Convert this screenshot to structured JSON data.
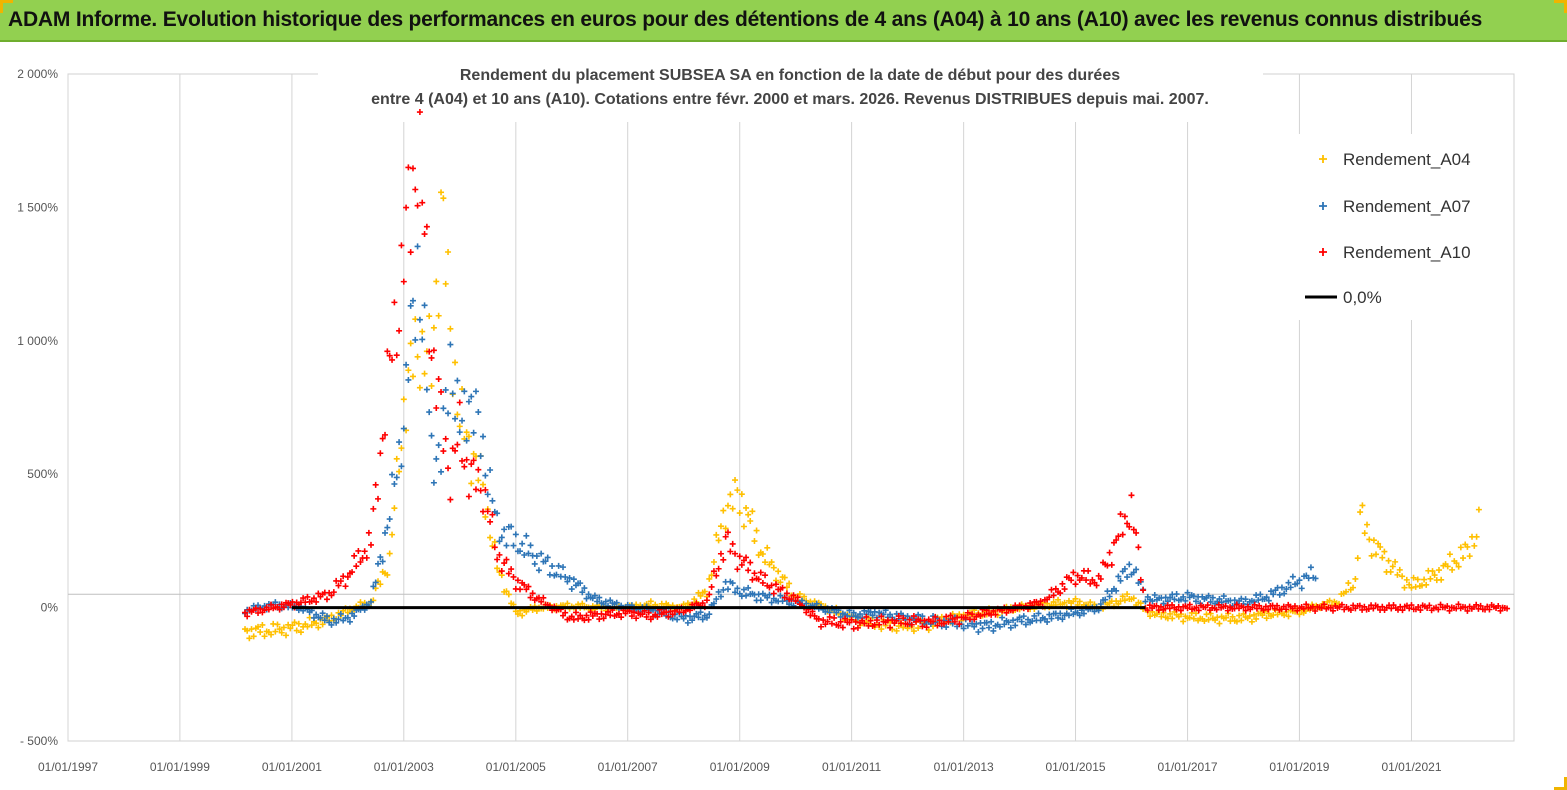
{
  "header": {
    "title": "ADAM Informe. Evolution historique des performances en euros pour des détentions de 4 ans (A04) à 10 ans (A10) avec les revenus connus distribués",
    "background": "#92d050"
  },
  "chart_data": {
    "type": "scatter",
    "title_lines": [
      "Rendement du placement SUBSEA SA en fonction de la date de début pour des durées",
      "entre 4 (A04) et 10 ans (A10).  Cotations entre févr. 2000 et mars. 2026. Revenus DISTRIBUES depuis mai. 2007."
    ],
    "x_axis": {
      "type": "date",
      "range": [
        "1997-01-01",
        "2022-11-01"
      ],
      "tick_labels": [
        "01/01/1997",
        "01/01/1999",
        "01/01/2001",
        "01/01/2003",
        "01/01/2005",
        "01/01/2007",
        "01/01/2009",
        "01/01/2011",
        "01/01/2013",
        "01/01/2015",
        "01/01/2017",
        "01/01/2019",
        "01/01/2021"
      ],
      "gridlines": true
    },
    "y_axis": {
      "range": [
        -500,
        2000
      ],
      "ticks": [
        -500,
        0,
        500,
        1000,
        1500,
        2000
      ],
      "tick_labels": [
        "- 500%",
        "0%",
        "500%",
        "1 000%",
        "1 500%",
        "2 000%"
      ],
      "unit": "%"
    },
    "legend": {
      "position": "top-right",
      "entries": [
        "Rendement_A04",
        "Rendement_A07",
        "Rendement_A10",
        "0,0%"
      ]
    },
    "series": [
      {
        "name": "Rendement_A04",
        "color": "#ffc000",
        "marker": "plus",
        "points": [
          [
            "2000-03-01",
            -90
          ],
          [
            "2000-09-01",
            -85
          ],
          [
            "2001-03-01",
            -70
          ],
          [
            "2001-09-01",
            -45
          ],
          [
            "2002-01-01",
            -10
          ],
          [
            "2002-06-01",
            20
          ],
          [
            "2002-10-01",
            180
          ],
          [
            "2003-01-01",
            750
          ],
          [
            "2003-04-01",
            1000
          ],
          [
            "2003-07-01",
            900
          ],
          [
            "2003-09-01",
            1500
          ],
          [
            "2003-11-01",
            1050
          ],
          [
            "2004-01-01",
            700
          ],
          [
            "2004-03-01",
            620
          ],
          [
            "2004-06-01",
            450
          ],
          [
            "2004-09-01",
            150
          ],
          [
            "2005-01-01",
            -20
          ],
          [
            "2005-06-01",
            0
          ],
          [
            "2006-01-01",
            5
          ],
          [
            "2006-06-01",
            0
          ],
          [
            "2007-01-01",
            0
          ],
          [
            "2007-06-01",
            10
          ],
          [
            "2008-01-01",
            0
          ],
          [
            "2008-06-01",
            60
          ],
          [
            "2008-10-01",
            380
          ],
          [
            "2009-01-01",
            420
          ],
          [
            "2009-06-01",
            200
          ],
          [
            "2010-01-01",
            40
          ],
          [
            "2010-06-01",
            10
          ],
          [
            "2011-01-01",
            -40
          ],
          [
            "2011-06-01",
            -60
          ],
          [
            "2012-01-01",
            -70
          ],
          [
            "2012-06-01",
            -60
          ],
          [
            "2013-01-01",
            -30
          ],
          [
            "2013-06-01",
            -20
          ],
          [
            "2014-01-01",
            0
          ],
          [
            "2014-06-01",
            10
          ],
          [
            "2015-01-01",
            20
          ],
          [
            "2015-06-01",
            0
          ],
          [
            "2016-01-01",
            40
          ],
          [
            "2016-04-01",
            -10
          ],
          [
            "2016-06-01",
            -25
          ],
          [
            "2017-01-01",
            -35
          ],
          [
            "2017-06-01",
            -40
          ],
          [
            "2018-01-01",
            -40
          ],
          [
            "2018-06-01",
            -25
          ],
          [
            "2019-01-01",
            -15
          ],
          [
            "2019-06-01",
            10
          ],
          [
            "2019-09-01",
            20
          ],
          [
            "2020-01-01",
            100
          ],
          [
            "2020-02-01",
            340
          ],
          [
            "2020-05-01",
            230
          ],
          [
            "2020-09-01",
            150
          ],
          [
            "2021-01-01",
            80
          ],
          [
            "2021-06-01",
            120
          ],
          [
            "2022-01-01",
            210
          ],
          [
            "2022-04-01",
            330
          ]
        ]
      },
      {
        "name": "Rendement_A07",
        "color": "#2e75b6",
        "marker": "plus",
        "points": [
          [
            "2000-03-01",
            -10
          ],
          [
            "2000-09-01",
            10
          ],
          [
            "2001-03-01",
            0
          ],
          [
            "2001-09-01",
            -50
          ],
          [
            "2002-01-01",
            -40
          ],
          [
            "2002-06-01",
            20
          ],
          [
            "2002-10-01",
            350
          ],
          [
            "2003-01-01",
            700
          ],
          [
            "2003-04-01",
            1300
          ],
          [
            "2003-07-01",
            600
          ],
          [
            "2003-09-01",
            550
          ],
          [
            "2003-11-01",
            950
          ],
          [
            "2004-01-01",
            650
          ],
          [
            "2004-03-01",
            800
          ],
          [
            "2004-06-01",
            600
          ],
          [
            "2004-09-01",
            300
          ],
          [
            "2005-01-01",
            250
          ],
          [
            "2005-06-01",
            180
          ],
          [
            "2006-01-01",
            100
          ],
          [
            "2006-06-01",
            30
          ],
          [
            "2007-01-01",
            0
          ],
          [
            "2007-06-01",
            -10
          ],
          [
            "2008-01-01",
            -40
          ],
          [
            "2008-06-01",
            -30
          ],
          [
            "2008-10-01",
            90
          ],
          [
            "2009-01-01",
            60
          ],
          [
            "2009-06-01",
            40
          ],
          [
            "2010-01-01",
            20
          ],
          [
            "2010-06-01",
            0
          ],
          [
            "2011-01-01",
            -30
          ],
          [
            "2011-06-01",
            -20
          ],
          [
            "2012-01-01",
            -40
          ],
          [
            "2012-06-01",
            -50
          ],
          [
            "2013-01-01",
            -60
          ],
          [
            "2013-06-01",
            -70
          ],
          [
            "2014-01-01",
            -50
          ],
          [
            "2014-06-01",
            -40
          ],
          [
            "2015-01-01",
            -20
          ],
          [
            "2015-06-01",
            0
          ],
          [
            "2016-01-01",
            160
          ],
          [
            "2016-04-01",
            40
          ],
          [
            "2016-06-01",
            30
          ],
          [
            "2017-01-01",
            40
          ],
          [
            "2017-06-01",
            30
          ],
          [
            "2018-01-01",
            20
          ],
          [
            "2018-06-01",
            40
          ],
          [
            "2019-01-01",
            100
          ],
          [
            "2019-05-01",
            130
          ]
        ]
      },
      {
        "name": "Rendement_A10",
        "color": "#ff0000",
        "marker": "plus",
        "points": [
          [
            "2000-03-01",
            -20
          ],
          [
            "2000-09-01",
            0
          ],
          [
            "2001-03-01",
            20
          ],
          [
            "2001-09-01",
            50
          ],
          [
            "2002-01-01",
            120
          ],
          [
            "2002-06-01",
            250
          ],
          [
            "2002-10-01",
            900
          ],
          [
            "2003-01-01",
            1300
          ],
          [
            "2003-04-01",
            1750
          ],
          [
            "2003-07-01",
            1000
          ],
          [
            "2003-09-01",
            700
          ],
          [
            "2003-11-01",
            500
          ],
          [
            "2004-01-01",
            650
          ],
          [
            "2004-03-01",
            500
          ],
          [
            "2004-06-01",
            450
          ],
          [
            "2004-09-01",
            200
          ],
          [
            "2005-01-01",
            100
          ],
          [
            "2005-06-01",
            30
          ],
          [
            "2006-01-01",
            -40
          ],
          [
            "2006-06-01",
            -30
          ],
          [
            "2007-01-01",
            -20
          ],
          [
            "2007-06-01",
            -30
          ],
          [
            "2008-01-01",
            -10
          ],
          [
            "2008-06-01",
            20
          ],
          [
            "2008-10-01",
            250
          ],
          [
            "2009-01-01",
            180
          ],
          [
            "2009-06-01",
            100
          ],
          [
            "2010-01-01",
            30
          ],
          [
            "2010-06-01",
            -50
          ],
          [
            "2011-01-01",
            -60
          ],
          [
            "2011-06-01",
            -55
          ],
          [
            "2012-01-01",
            -50
          ],
          [
            "2012-06-01",
            -55
          ],
          [
            "2013-01-01",
            -40
          ],
          [
            "2013-06-01",
            -20
          ],
          [
            "2014-01-01",
            0
          ],
          [
            "2014-06-01",
            20
          ],
          [
            "2015-01-01",
            120
          ],
          [
            "2015-06-01",
            100
          ],
          [
            "2016-01-01",
            380
          ],
          [
            "2016-04-01",
            0
          ],
          [
            "2017-01-01",
            0
          ],
          [
            "2018-01-01",
            0
          ],
          [
            "2019-01-01",
            0
          ],
          [
            "2020-01-01",
            0
          ],
          [
            "2021-01-01",
            0
          ],
          [
            "2022-01-01",
            0
          ],
          [
            "2022-10-01",
            0
          ]
        ]
      }
    ],
    "reference_line": {
      "name": "0,0%",
      "value": 0,
      "color": "#000000",
      "from": "2001-01-01",
      "to": "2016-04-01"
    }
  }
}
